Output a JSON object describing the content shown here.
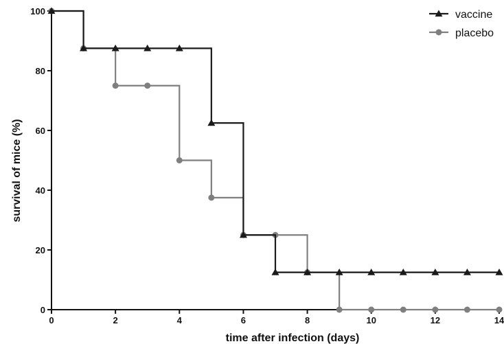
{
  "chart_data": {
    "type": "line",
    "step": true,
    "xlabel": "time after infection (days)",
    "ylabel": "survival of mice (%)",
    "xlim": [
      0,
      14
    ],
    "ylim": [
      0,
      100
    ],
    "xticks": [
      0,
      2,
      4,
      6,
      8,
      10,
      12,
      14
    ],
    "yticks": [
      0,
      20,
      40,
      60,
      80,
      100
    ],
    "grid": false,
    "legend_position": "top-right",
    "series": [
      {
        "name": "vaccine",
        "color": "#1a1a1a",
        "marker": "triangle",
        "x": [
          0,
          1,
          2,
          3,
          4,
          5,
          6,
          7,
          8,
          9,
          10,
          11,
          12,
          13,
          14
        ],
        "y": [
          100,
          87.5,
          87.5,
          87.5,
          87.5,
          62.5,
          25,
          12.5,
          12.5,
          12.5,
          12.5,
          12.5,
          12.5,
          12.5,
          12.5
        ]
      },
      {
        "name": "placebo",
        "color": "#7f7f7f",
        "marker": "circle",
        "x": [
          0,
          1,
          2,
          3,
          4,
          5,
          6,
          7,
          8,
          9,
          10,
          11,
          12,
          13,
          14
        ],
        "y": [
          100,
          87.5,
          75,
          75,
          50,
          37.5,
          25,
          25,
          12.5,
          0,
          0,
          0,
          0,
          0,
          0
        ]
      }
    ]
  }
}
